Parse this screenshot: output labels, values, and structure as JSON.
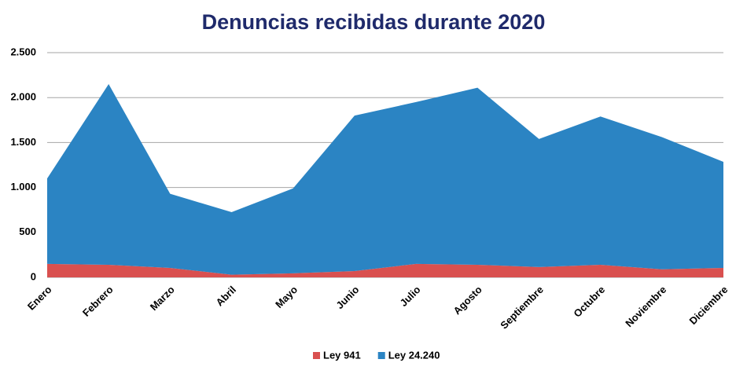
{
  "chart_data": {
    "type": "stacked_area",
    "title": "Denuncias recibidas durante 2020",
    "categories": [
      "Enero",
      "Febrero",
      "Marzo",
      "Abril",
      "Mayo",
      "Junio",
      "Julio",
      "Agosto",
      "Septiembre",
      "Octubre",
      "Noviembre",
      "Diciembre"
    ],
    "series": [
      {
        "name": "Ley 941",
        "color": "#d9504f",
        "values": [
          150,
          140,
          105,
          30,
          45,
          70,
          150,
          140,
          115,
          140,
          90,
          105
        ]
      },
      {
        "name": "Ley 24.240",
        "color": "#2b84c3",
        "values": [
          950,
          2010,
          825,
          695,
          945,
          1730,
          1800,
          1970,
          1425,
          1650,
          1470,
          1180
        ]
      }
    ],
    "ylim": [
      0,
      2500
    ],
    "yticks": [
      0,
      500,
      {
        "value": 1000,
        "label": "1.000"
      },
      {
        "value": 1500,
        "label": "1.500"
      },
      {
        "value": 2000,
        "label": "2.000"
      },
      {
        "value": 2500,
        "label": "2.500"
      }
    ],
    "grid": true,
    "legend": "bottom"
  }
}
